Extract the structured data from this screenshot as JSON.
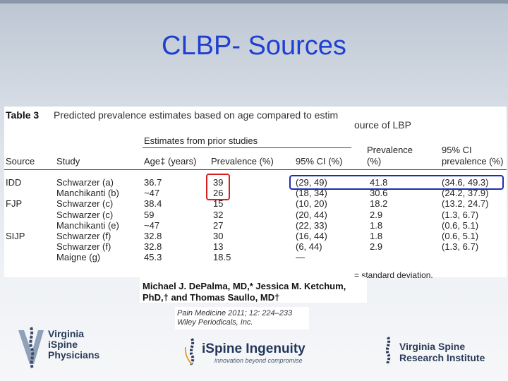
{
  "slide": {
    "title": "CLBP- Sources"
  },
  "table": {
    "label": "Table 3",
    "caption_left": "Predicted prevalence estimates based on age compared to estim",
    "caption_right": "ource of LBP",
    "group_header": "Estimates from prior studies",
    "columns": [
      "Source",
      "Study",
      "Age‡ (years)",
      "Prevalence (%)",
      "95% CI (%)"
    ],
    "right_columns": [
      {
        "line1": "Prevalence",
        "line2": "(%)"
      },
      {
        "line1": "95% CI",
        "line2": "prevalence (%)"
      }
    ],
    "rows": [
      {
        "source": "IDD",
        "study": "Schwarzer (a)",
        "age": "36.7",
        "prev": "39",
        "ci": "(29, 49)",
        "pred": "41.8",
        "pred_ci": "(34.6, 49.3)"
      },
      {
        "source": "",
        "study": "Manchikanti (b)",
        "age": "~47",
        "prev": "26",
        "ci": "(18, 34)",
        "pred": "30.6",
        "pred_ci": "(24.2, 37.9)"
      },
      {
        "source": "FJP",
        "study": "Schwarzer (c)",
        "age": "38.4",
        "prev": "15",
        "ci": "(10, 20)",
        "pred": "18.2",
        "pred_ci": "(13.2, 24.7)"
      },
      {
        "source": "",
        "study": "Schwarzer (c)",
        "age": "59",
        "prev": "32",
        "ci": "(20, 44)",
        "pred": "2.9",
        "pred_ci": "(1.3, 6.7)"
      },
      {
        "source": "",
        "study": "Manchikanti (e)",
        "age": "~47",
        "prev": "27",
        "ci": "(22, 33)",
        "pred": "1.8",
        "pred_ci": "(0.6, 5.1)"
      },
      {
        "source": "SIJP",
        "study": "Schwarzer (f)",
        "age": "32.8",
        "prev": "30",
        "ci": "(16, 44)",
        "pred": "1.8",
        "pred_ci": "(0.6, 5.1)"
      },
      {
        "source": "",
        "study": "Schwarzer (f)",
        "age": "32.8",
        "prev": "13",
        "ci": "(6, 44)",
        "pred": "2.9",
        "pred_ci": "(1.3, 6.7)"
      },
      {
        "source": "",
        "study": "Maigne (g)",
        "age": "45.3",
        "prev": "18.5",
        "ci": "—",
        "pred": "",
        "pred_ci": ""
      }
    ],
    "footnote": "= standard deviation."
  },
  "citation": {
    "authors_line1": "Michael J. DePalma, MD,* Jessica M. Ketchum,",
    "authors_line2": "PhD,† and Thomas Saullo, MD†",
    "journal_line1": "Pain Medicine 2011; 12: 224–233",
    "journal_line2": "Wiley Periodicals, Inc."
  },
  "footer": {
    "vsp_line1": "Virginia",
    "vsp_line2": "iSpine",
    "vsp_line3": "Physicians",
    "ingenuity_name": "iSpine Ingenuity",
    "ingenuity_tag": "innovation beyond compromise",
    "vsri_line1": "Virginia Spine",
    "vsri_line2": "Research Institute"
  },
  "colors": {
    "title": "#1f3fd1",
    "highlight_red": "#d42020",
    "highlight_blue": "#1b2fb0"
  }
}
